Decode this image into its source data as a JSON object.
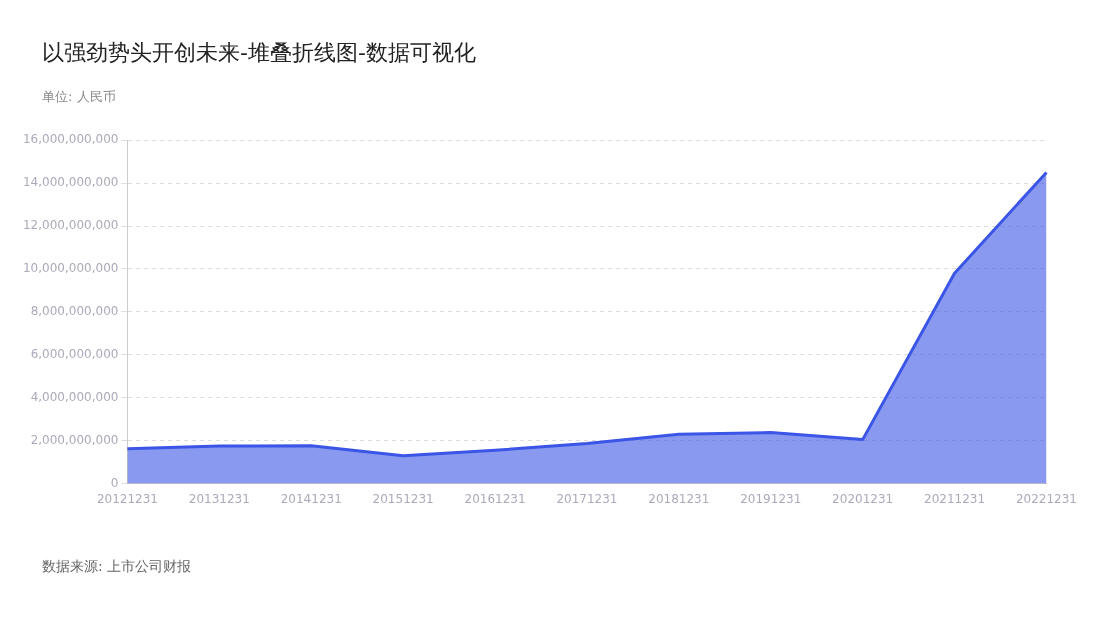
{
  "chart_data": {
    "type": "area",
    "title": "以强劲势头开创未来-堆叠折线图-数据可视化",
    "ylabel": "单位: 人民币",
    "annotations": [
      "数据来源: 上市公司财报"
    ],
    "categories": [
      "20121231",
      "20131231",
      "20141231",
      "20151231",
      "20161231",
      "20171231",
      "20181231",
      "20191231",
      "20201231",
      "20211231",
      "20221231"
    ],
    "series": [
      {
        "color": "#3b55e6",
        "values": [
          1620000000,
          1750000000,
          1760000000,
          1300000000,
          1550000000,
          1870000000,
          2300000000,
          2380000000,
          2050000000,
          9800000000,
          14500000000
        ]
      }
    ],
    "ylim": [
      0,
      16000000000
    ],
    "yticks": [
      0,
      {
        "value": 2000000000,
        "label": "2,000,000,000"
      },
      {
        "value": 4000000000,
        "label": "4,000,000,000"
      },
      {
        "value": 6000000000,
        "label": "6,000,000,000"
      },
      {
        "value": 8000000000,
        "label": "8,000,000,000"
      },
      {
        "value": 10000000000,
        "label": "10,000,000,000"
      },
      {
        "value": 12000000000,
        "label": "12,000,000,000"
      },
      {
        "value": 14000000000,
        "label": "14,000,000,000"
      },
      {
        "value": 16000000000,
        "label": "16,000,000,000"
      }
    ],
    "grid": "y",
    "legend": false,
    "marker": "none"
  }
}
